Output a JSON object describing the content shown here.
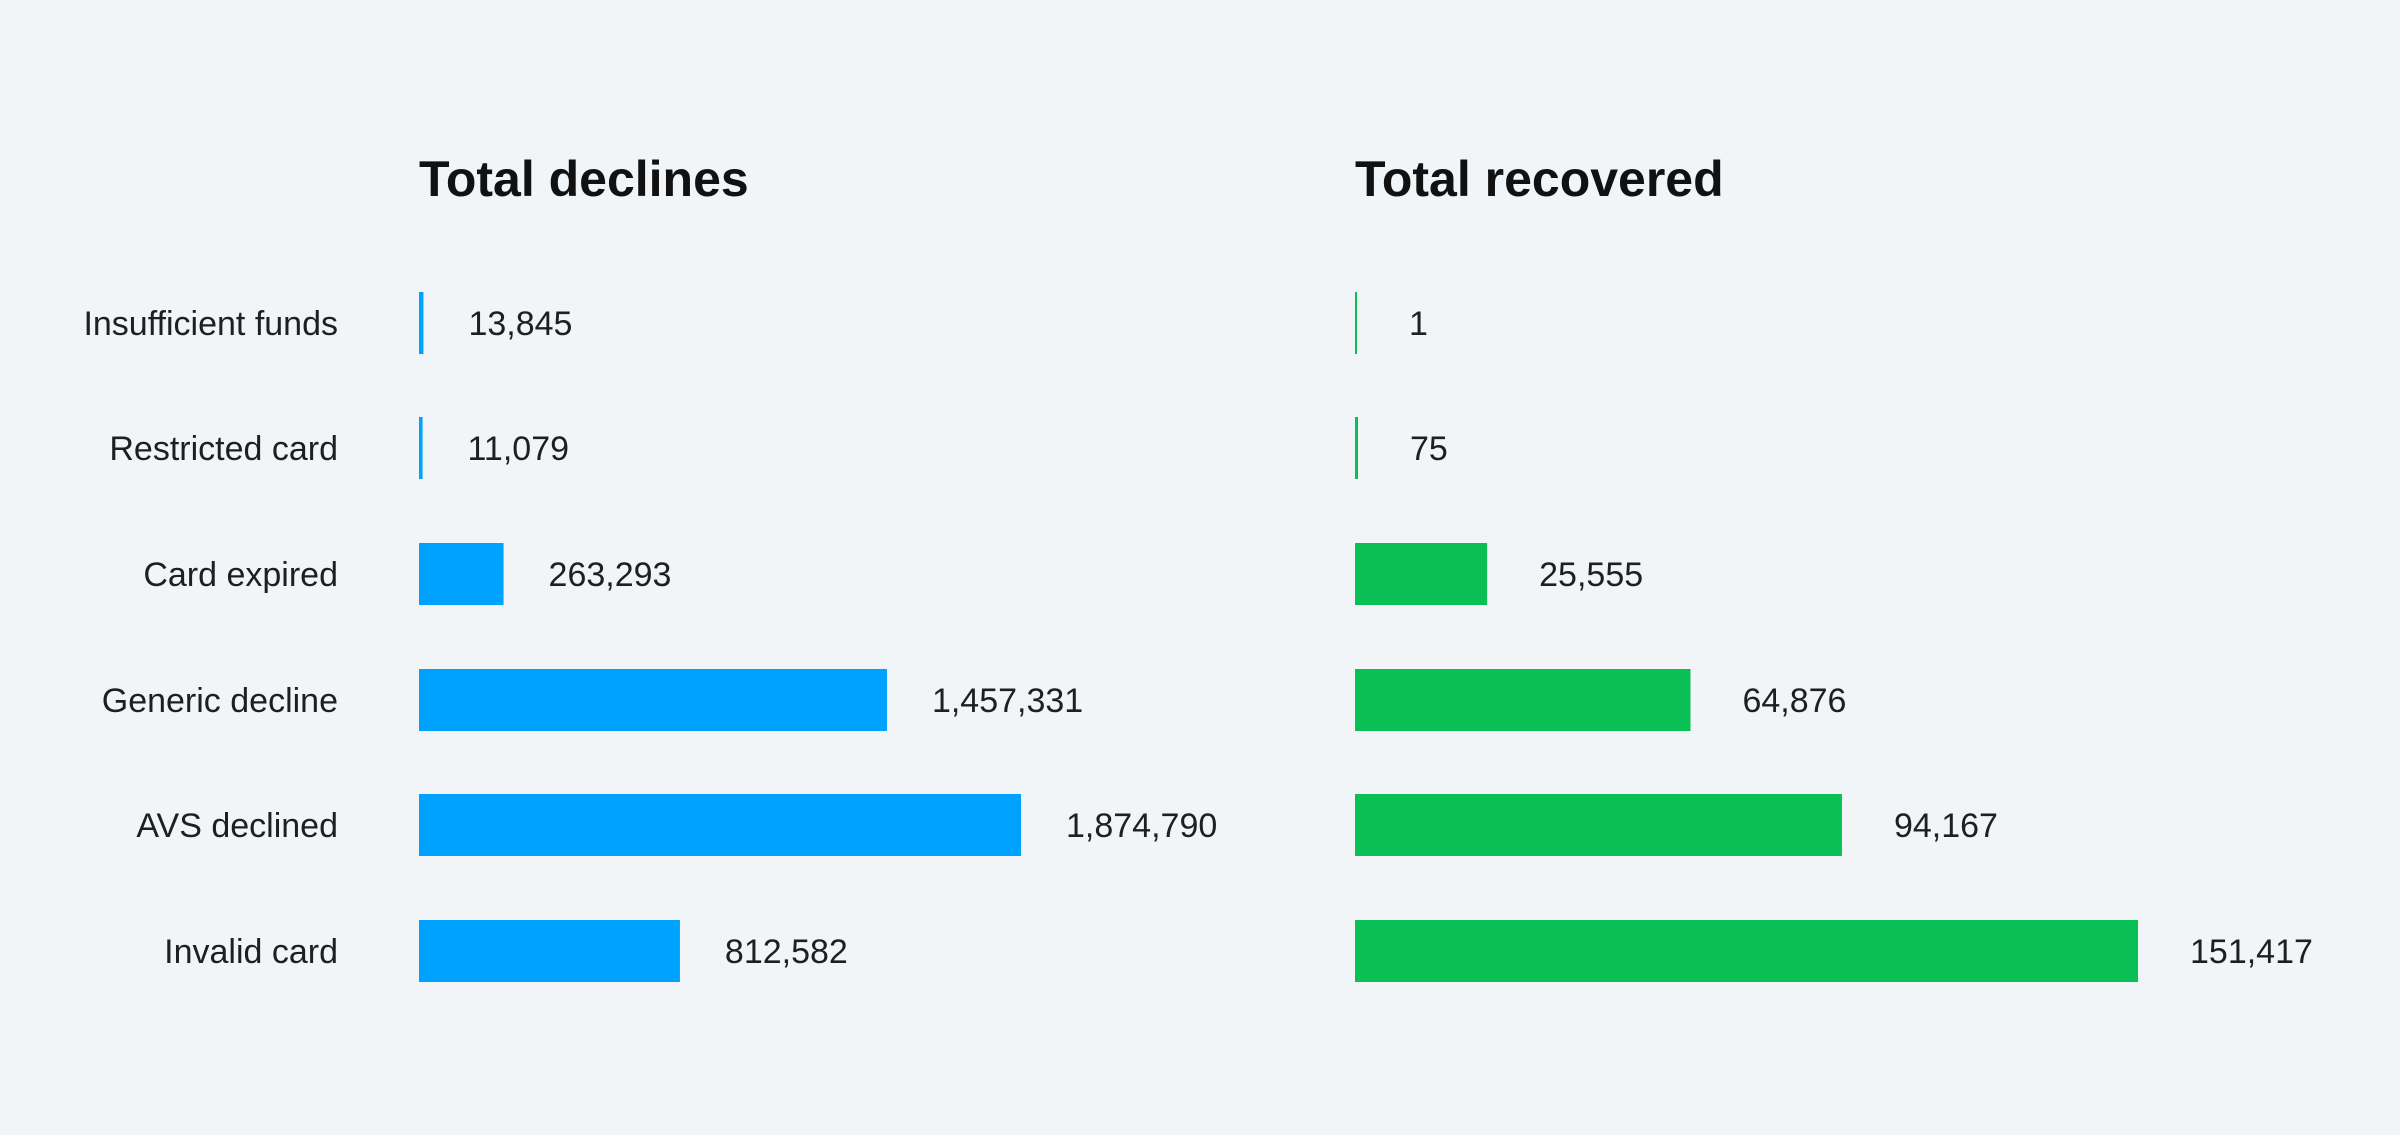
{
  "colors": {
    "background": "#f1f5f8",
    "declines_bar": "#00a2ff",
    "recovered_bar": "#0abf53",
    "text": "#1f1f1f"
  },
  "chart_data": [
    {
      "type": "bar",
      "orientation": "horizontal",
      "title": "Total declines",
      "categories": [
        "Insufficient funds",
        "Restricted card",
        "Card expired",
        "Generic decline",
        "AVS declined",
        "Invalid card"
      ],
      "values": [
        13845,
        11079,
        263293,
        1457331,
        1874790,
        812582
      ],
      "value_labels": [
        "13,845",
        "11,079",
        "263,293",
        "1,457,331",
        "1,874,790",
        "812,582"
      ],
      "color": "#00a2ff",
      "xlim": [
        0,
        1874790
      ],
      "grid": false,
      "legend": "none"
    },
    {
      "type": "bar",
      "orientation": "horizontal",
      "title": "Total recovered",
      "categories": [
        "Insufficient funds",
        "Restricted card",
        "Card expired",
        "Generic decline",
        "AVS declined",
        "Invalid card"
      ],
      "values": [
        1,
        75,
        25555,
        64876,
        94167,
        151417
      ],
      "value_labels": [
        "1",
        "75",
        "25,555",
        "64,876",
        "94,167",
        "151,417"
      ],
      "color": "#0abf53",
      "xlim": [
        0,
        151417
      ],
      "grid": false,
      "legend": "none"
    }
  ]
}
